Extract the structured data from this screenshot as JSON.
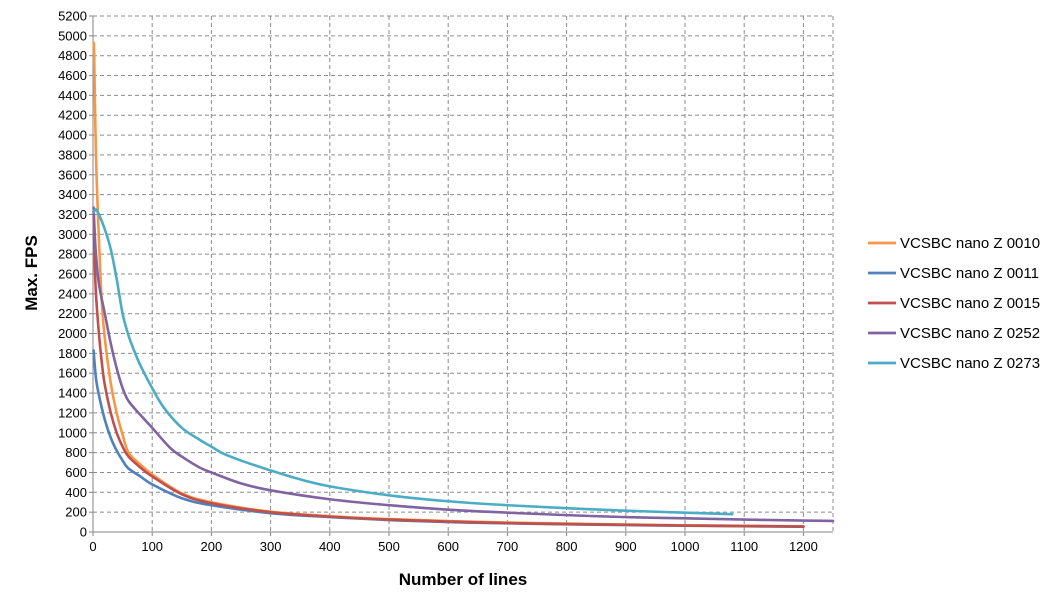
{
  "chart_data": {
    "type": "line",
    "title": "",
    "xlabel": "Number of lines",
    "ylabel": "Max. FPS",
    "xlim": [
      0,
      1250
    ],
    "ylim": [
      0,
      5200
    ],
    "xticks": [
      0,
      100,
      200,
      300,
      400,
      500,
      600,
      700,
      800,
      900,
      1000,
      1100,
      1200
    ],
    "yticks": [
      0,
      200,
      400,
      600,
      800,
      1000,
      1200,
      1400,
      1600,
      1800,
      2000,
      2200,
      2400,
      2600,
      2800,
      3000,
      3200,
      3400,
      3600,
      3800,
      4000,
      4200,
      4400,
      4600,
      4800,
      5000,
      5200
    ],
    "grid": true,
    "legend_position": "right",
    "series": [
      {
        "name": "VCSBC nano Z 0010",
        "color": "#F79646",
        "x": [
          1,
          2,
          5,
          10,
          15,
          20,
          30,
          40,
          50,
          60,
          80,
          100,
          150,
          200,
          300,
          400,
          500,
          600,
          700,
          800,
          900,
          1000,
          1100,
          1200
        ],
        "y": [
          4930,
          4800,
          3800,
          2950,
          2300,
          1950,
          1500,
          1200,
          980,
          800,
          680,
          580,
          390,
          300,
          205,
          160,
          130,
          110,
          95,
          85,
          75,
          68,
          62,
          58
        ]
      },
      {
        "name": "VCSBC nano Z 0011",
        "color": "#4F81BD",
        "x": [
          1,
          5,
          10,
          20,
          30,
          40,
          50,
          60,
          80,
          100,
          150,
          200,
          300,
          400,
          500,
          600,
          700,
          800,
          900,
          1000,
          1100,
          1200
        ],
        "y": [
          1830,
          1550,
          1380,
          1130,
          950,
          820,
          720,
          640,
          560,
          480,
          340,
          270,
          190,
          150,
          120,
          100,
          87,
          77,
          70,
          63,
          58,
          53
        ]
      },
      {
        "name": "VCSBC nano Z 0015",
        "color": "#C0504D",
        "x": [
          1,
          3,
          5,
          10,
          15,
          20,
          30,
          40,
          50,
          60,
          80,
          100,
          150,
          200,
          300,
          400,
          500,
          600,
          700,
          800,
          900,
          1000,
          1100,
          1200
        ],
        "y": [
          3230,
          2700,
          2400,
          2000,
          1700,
          1480,
          1200,
          1000,
          860,
          760,
          650,
          560,
          380,
          290,
          200,
          155,
          125,
          105,
          90,
          80,
          72,
          65,
          60,
          55
        ]
      },
      {
        "name": "VCSBC nano Z 0252",
        "color": "#8064A2",
        "x": [
          1,
          3,
          5,
          10,
          20,
          30,
          40,
          50,
          60,
          80,
          100,
          130,
          150,
          180,
          200,
          250,
          300,
          400,
          500,
          600,
          700,
          800,
          900,
          1000,
          1100,
          1200,
          1250
        ],
        "y": [
          3270,
          3000,
          2800,
          2500,
          2200,
          1900,
          1650,
          1450,
          1320,
          1180,
          1050,
          850,
          760,
          650,
          600,
          490,
          420,
          330,
          270,
          225,
          195,
          170,
          150,
          138,
          125,
          115,
          112
        ]
      },
      {
        "name": "VCSBC nano Z 0273",
        "color": "#4BACC6",
        "x": [
          1,
          5,
          10,
          20,
          30,
          40,
          50,
          60,
          70,
          80,
          100,
          120,
          150,
          180,
          200,
          220,
          250,
          300,
          350,
          400,
          500,
          600,
          700,
          800,
          900,
          1000,
          1080
        ],
        "y": [
          3220,
          3250,
          3200,
          3050,
          2850,
          2550,
          2200,
          1980,
          1820,
          1680,
          1450,
          1250,
          1050,
          930,
          860,
          790,
          720,
          620,
          530,
          460,
          370,
          310,
          270,
          240,
          215,
          195,
          180
        ]
      }
    ]
  }
}
